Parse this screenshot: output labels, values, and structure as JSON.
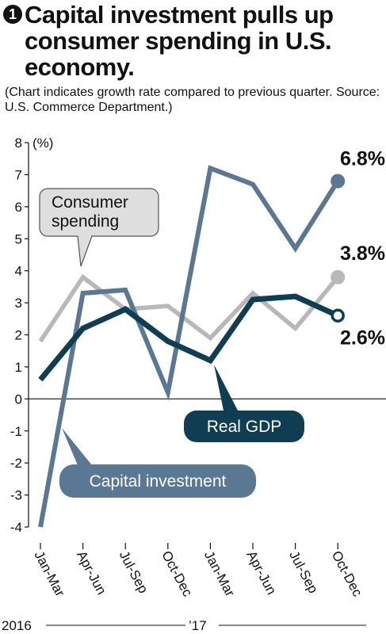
{
  "header": {
    "number": "1",
    "title": "Capital investment pulls up consumer spending in U.S. economy.",
    "subtitle": "(Chart indicates growth rate compared to previous quarter. Source: U.S. Commerce Department.)"
  },
  "chart_data": {
    "type": "line",
    "unit_label": "(%)",
    "x": [
      "Jan-Mar",
      "Apr-Jun",
      "Jul-Sep",
      "Oct-Dec",
      "Jan-Mar",
      "Apr-Jun",
      "Jul-Sep",
      "Oct-Dec"
    ],
    "year_labels": [
      "2016",
      "’17"
    ],
    "ylim": [
      -4,
      8
    ],
    "yticks": [
      8,
      7,
      6,
      5,
      4,
      3,
      2,
      1,
      0,
      -1,
      -2,
      -3,
      -4
    ],
    "grid": false,
    "series": [
      {
        "name": "Consumer spending",
        "color": "#b8b8b8",
        "values": [
          1.8,
          3.8,
          2.8,
          2.9,
          1.9,
          3.3,
          2.2,
          3.8
        ],
        "end_label": "3.8%",
        "end_marker": "filled"
      },
      {
        "name": "Real GDP",
        "color": "#0f3e52",
        "values": [
          0.6,
          2.2,
          2.8,
          1.8,
          1.2,
          3.1,
          3.2,
          2.6
        ],
        "end_label": "2.6%",
        "end_marker": "hollow"
      },
      {
        "name": "Capital investment",
        "color": "#5a7894",
        "values": [
          -4.0,
          3.3,
          3.4,
          0.2,
          7.2,
          6.7,
          4.7,
          6.8
        ],
        "end_label": "6.8%",
        "end_marker": "filled"
      }
    ]
  }
}
